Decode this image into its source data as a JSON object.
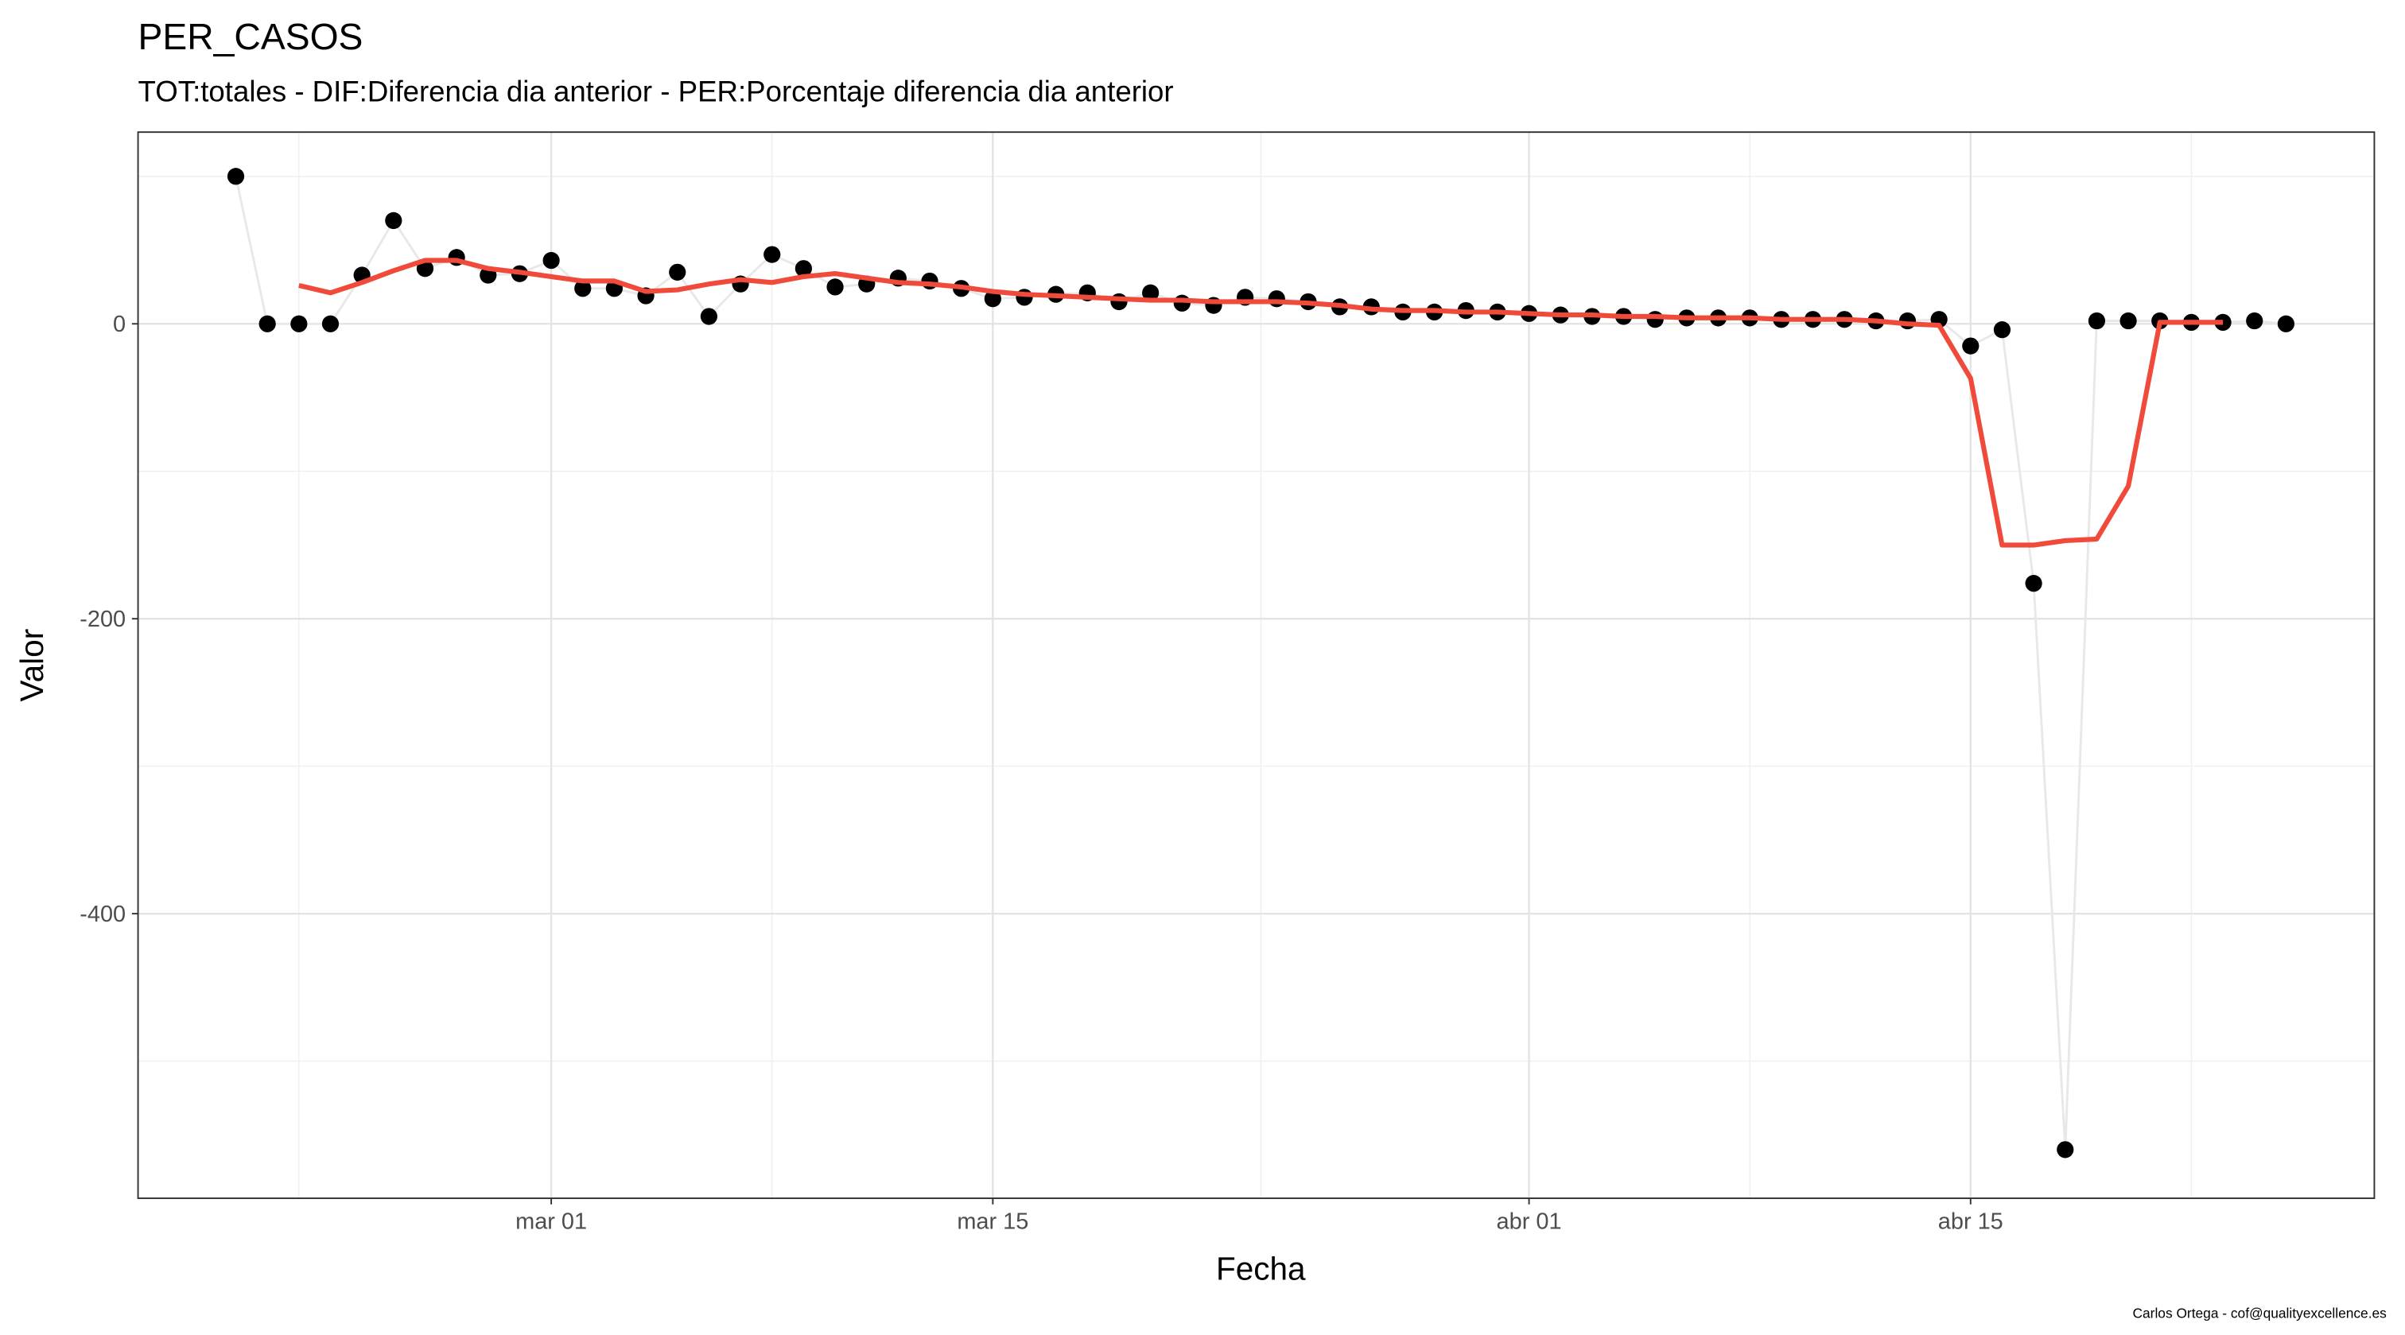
{
  "chart_data": {
    "type": "line",
    "title": "PER_CASOS",
    "subtitle": "TOT:totales - DIF:Diferencia dia anterior - PER:Porcentaje diferencia dia anterior",
    "x_label": "Fecha",
    "y_label": "Valor",
    "caption": "Carlos Ortega - cof@qualityexcellence.es",
    "x": [
      "02-20",
      "02-21",
      "02-22",
      "02-23",
      "02-24",
      "02-25",
      "02-26",
      "02-27",
      "02-28",
      "02-29",
      "03-01",
      "03-02",
      "03-03",
      "03-04",
      "03-05",
      "03-06",
      "03-07",
      "03-08",
      "03-09",
      "03-10",
      "03-11",
      "03-12",
      "03-13",
      "03-14",
      "03-15",
      "03-16",
      "03-17",
      "03-18",
      "03-19",
      "03-20",
      "03-21",
      "03-22",
      "03-23",
      "03-24",
      "03-25",
      "03-26",
      "03-27",
      "03-28",
      "03-29",
      "03-30",
      "03-31",
      "04-01",
      "04-02",
      "04-03",
      "04-04",
      "04-05",
      "04-06",
      "04-07",
      "04-08",
      "04-09",
      "04-10",
      "04-11",
      "04-12",
      "04-13",
      "04-14",
      "04-15",
      "04-16",
      "04-17",
      "04-18",
      "04-19",
      "04-20",
      "04-21",
      "04-22",
      "04-23",
      "04-24",
      "04-25"
    ],
    "series": [
      {
        "color": "#000000",
        "line_color": "#e8e8e8",
        "values": [
          100,
          0,
          0,
          0,
          33,
          70,
          37.5,
          45,
          33,
          34,
          43,
          24,
          24,
          19,
          35,
          5,
          27,
          47,
          37.5,
          25,
          27,
          31,
          29,
          24,
          17,
          18,
          20,
          21,
          15,
          21,
          14,
          12.5,
          18,
          17,
          15,
          11.5,
          11.5,
          8,
          8,
          9,
          8,
          7,
          6,
          5,
          5,
          3,
          4,
          4,
          4,
          3,
          3,
          3,
          2,
          2,
          3,
          -15,
          -4,
          -176,
          -560,
          2,
          2,
          2,
          1,
          1,
          2,
          0
        ]
      },
      {
        "color": "#f04a3a",
        "values": [
          null,
          null,
          26,
          21,
          28,
          36,
          43,
          43,
          37.5,
          35,
          32,
          29,
          29,
          22,
          23,
          27,
          30,
          28,
          32,
          34,
          31,
          28,
          27,
          25,
          22,
          20,
          19,
          18,
          17,
          16,
          16,
          15,
          15,
          15,
          14,
          12.5,
          10,
          9,
          9,
          8,
          8,
          7,
          6,
          6,
          5,
          5,
          4,
          4,
          4,
          3,
          3,
          3,
          2,
          0,
          -1,
          -37,
          -150,
          -150,
          -147,
          -146,
          -110,
          1,
          1,
          1,
          null,
          null
        ]
      }
    ],
    "xlim": [
      "02-16.9",
      "04-27.8"
    ],
    "xticks": [
      {
        "value": "03-01",
        "label": "mar 01"
      },
      {
        "value": "03-15",
        "label": "mar 15"
      },
      {
        "value": "04-01",
        "label": "abr 01"
      },
      {
        "value": "04-15",
        "label": "abr 15"
      }
    ],
    "xminor": [
      "02-22",
      "03-08",
      "03-23.5",
      "04-08",
      "04-22"
    ],
    "ylim": [
      -593,
      130
    ],
    "yticks": [
      -400,
      -200,
      0
    ],
    "yminor": [
      -500,
      -300,
      -100,
      100
    ],
    "grid": true
  }
}
